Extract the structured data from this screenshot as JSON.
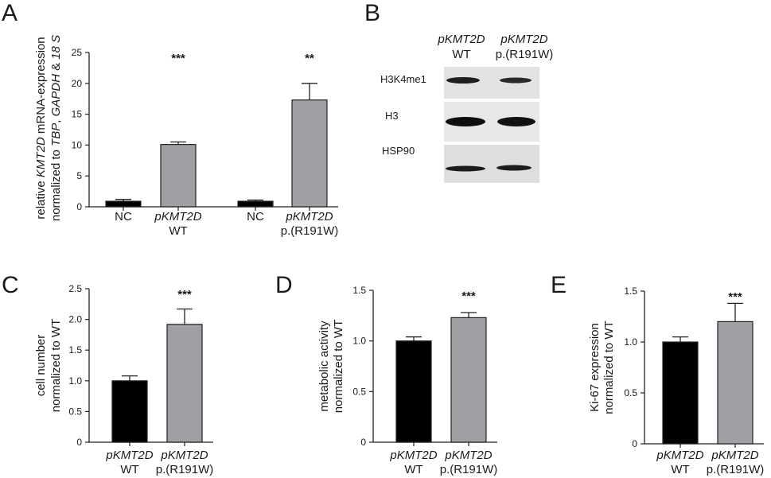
{
  "panels": {
    "a": "A",
    "b": "B",
    "c": "C",
    "d": "D",
    "e": "E"
  },
  "chart_data": [
    {
      "id": "A",
      "type": "bar",
      "ylabel_line1_parts": [
        "relative ",
        "KMT2D",
        " mRNA-expression"
      ],
      "ylabel_line2_parts": [
        "normalized to ",
        "TBP",
        ", ",
        "GAPDH",
        " & ",
        "18 S"
      ],
      "ylim": [
        0,
        25
      ],
      "yticks": [
        0,
        5,
        10,
        15,
        20,
        25
      ],
      "categories": [
        {
          "line1": "NC",
          "line2": "",
          "italic1": false
        },
        {
          "line1": "pKMT2D",
          "line2": "WT",
          "italic1": true
        },
        {
          "line1": "NC",
          "line2": "",
          "italic1": false
        },
        {
          "line1": "pKMT2D",
          "line2": "p.(R191W)",
          "italic1": true
        }
      ],
      "values": [
        0.9,
        10.1,
        0.9,
        17.3
      ],
      "errors": [
        0.3,
        0.4,
        0.2,
        2.7
      ],
      "colors": [
        "#000000",
        "#a0a0a4",
        "#000000",
        "#a0a0a4"
      ],
      "significance": [
        "",
        "***",
        "",
        "**"
      ]
    },
    {
      "id": "C",
      "type": "bar",
      "ylabel_line1": "cell number",
      "ylabel_line2": "normalized to WT",
      "ylim": [
        0,
        2.5
      ],
      "yticks": [
        "0",
        "0.5",
        "1.0",
        "1.5",
        "2.0",
        "2.5"
      ],
      "categories": [
        {
          "line1": "pKMT2D",
          "line2": "WT"
        },
        {
          "line1": "pKMT2D",
          "line2": "p.(R191W)"
        }
      ],
      "values": [
        1.0,
        1.92
      ],
      "errors": [
        0.08,
        0.25
      ],
      "colors": [
        "#000000",
        "#a0a0a4"
      ],
      "significance": [
        "",
        "***"
      ]
    },
    {
      "id": "D",
      "type": "bar",
      "ylabel_line1": "metabolic activity",
      "ylabel_line2": "normalized to WT",
      "ylim": [
        0,
        1.5
      ],
      "yticks": [
        "0",
        "0.5",
        "1.0",
        "1.5"
      ],
      "categories": [
        {
          "line1": "pKMT2D",
          "line2": "WT"
        },
        {
          "line1": "pKMT2D",
          "line2": "p.(R191W)"
        }
      ],
      "values": [
        1.0,
        1.23
      ],
      "errors": [
        0.04,
        0.05
      ],
      "colors": [
        "#000000",
        "#a0a0a4"
      ],
      "significance": [
        "",
        "***"
      ]
    },
    {
      "id": "E",
      "type": "bar",
      "ylabel_line1": "Ki-67 expression",
      "ylabel_line2": "normalized to WT",
      "ylim": [
        0,
        1.5
      ],
      "yticks": [
        "0",
        "0.5",
        "1.0",
        "1.5"
      ],
      "categories": [
        {
          "line1": "pKMT2D",
          "line2": "WT"
        },
        {
          "line1": "pKMT2D",
          "line2": "p.(R191W)"
        }
      ],
      "values": [
        1.0,
        1.2
      ],
      "errors": [
        0.05,
        0.18
      ],
      "colors": [
        "#000000",
        "#a0a0a4"
      ],
      "significance": [
        "",
        "***"
      ]
    }
  ],
  "blot": {
    "columns": [
      {
        "line1": "pKMT2D",
        "line2": "WT"
      },
      {
        "line1": "pKMT2D",
        "line2": "p.(R191W)"
      }
    ],
    "rows": [
      "H3K4me1",
      "H3",
      "HSP90"
    ]
  }
}
